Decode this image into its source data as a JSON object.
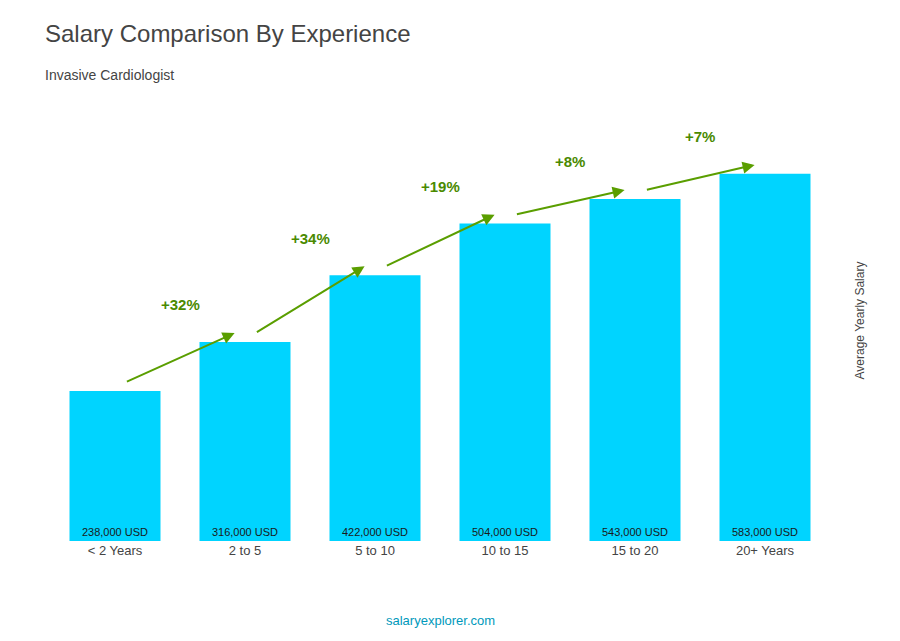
{
  "chart_data": {
    "type": "bar",
    "title": "Salary Comparison By Experience",
    "subtitle": "Invasive Cardiologist",
    "ylabel": "Average Yearly Salary",
    "categories": [
      "< 2 Years",
      "2 to 5",
      "5 to 10",
      "10 to 15",
      "15 to 20",
      "20+ Years"
    ],
    "values": [
      238000,
      316000,
      422000,
      504000,
      543000,
      583000
    ],
    "value_labels": [
      "238,000 USD",
      "316,000 USD",
      "422,000 USD",
      "504,000 USD",
      "543,000 USD",
      "583,000 USD"
    ],
    "data_labels": true,
    "color": "#00d4ff",
    "ylim": [
      0,
      700000
    ],
    "grid": false,
    "tick_labels": "x",
    "annotations": [
      "+32%",
      "+34%",
      "+19%",
      "+8%",
      "+7%"
    ],
    "source": "salaryexplorer.com"
  }
}
